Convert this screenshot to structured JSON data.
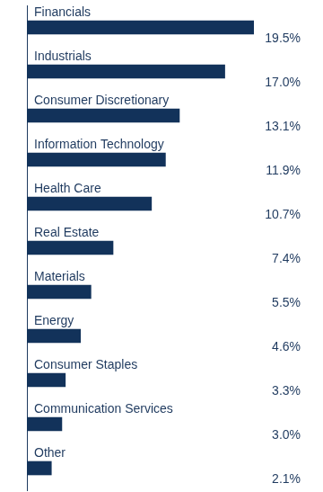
{
  "chart_data": {
    "type": "bar",
    "orientation": "horizontal",
    "categories": [
      "Financials",
      "Industrials",
      "Consumer Discretionary",
      "Information Technology",
      "Health Care",
      "Real Estate",
      "Materials",
      "Energy",
      "Consumer Staples",
      "Communication Services",
      "Other"
    ],
    "values": [
      19.5,
      17.0,
      13.1,
      11.9,
      10.7,
      7.4,
      5.5,
      4.6,
      3.3,
      3.0,
      2.1
    ],
    "value_labels": [
      "19.5%",
      "17.0%",
      "13.1%",
      "11.9%",
      "10.7%",
      "7.4%",
      "5.5%",
      "4.6%",
      "3.3%",
      "3.0%",
      "2.1%"
    ],
    "color": "#12325a",
    "xlim": [
      0,
      19.5
    ],
    "grid": false,
    "data_labels": true,
    "tick_labels": false
  }
}
